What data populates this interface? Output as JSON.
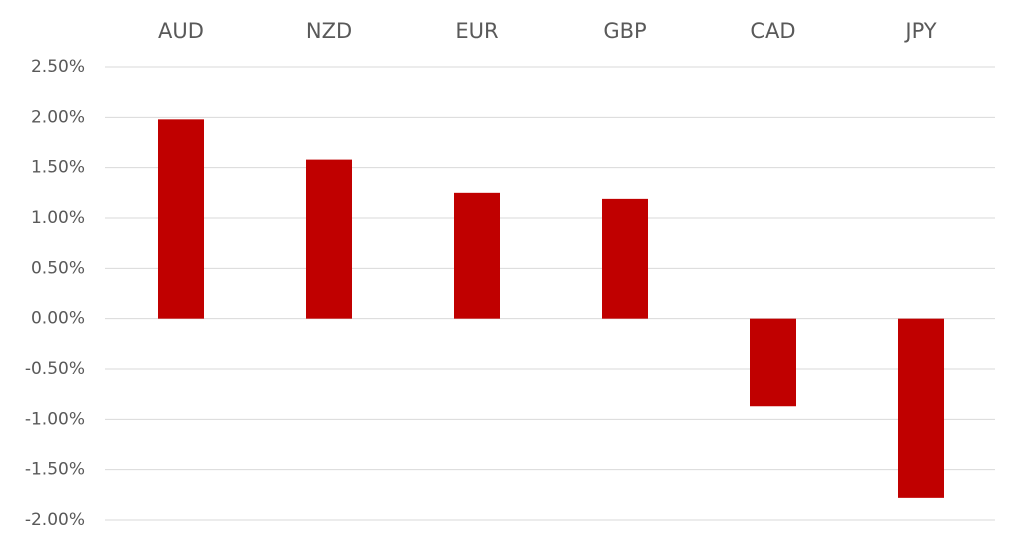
{
  "chart_data": {
    "type": "bar",
    "categories": [
      "AUD",
      "NZD",
      "EUR",
      "GBP",
      "CAD",
      "JPY"
    ],
    "values": [
      1.98,
      1.58,
      1.25,
      1.19,
      -0.87,
      -1.78
    ],
    "color": "#c00000",
    "ylim": [
      -2,
      2.5
    ],
    "yticks": [
      {
        "value": -2,
        "label": "-2.00%"
      },
      {
        "value": -1.5,
        "label": "-1.50%"
      },
      {
        "value": -1,
        "label": "-1.00%"
      },
      {
        "value": -0.5,
        "label": "-0.50%"
      },
      {
        "value": 0,
        "label": "0.00%"
      },
      {
        "value": 0.5,
        "label": "0.50%"
      },
      {
        "value": 1,
        "label": "1.00%"
      },
      {
        "value": 1.5,
        "label": "1.50%"
      },
      {
        "value": 2,
        "label": "2.00%"
      },
      {
        "value": 2.5,
        "label": "2.50%"
      }
    ],
    "grid": true
  }
}
